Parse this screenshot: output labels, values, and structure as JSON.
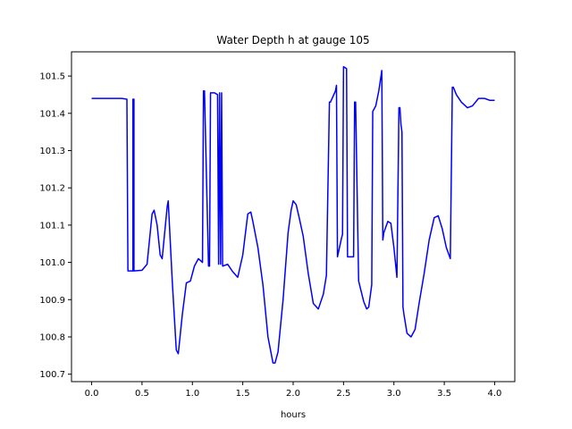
{
  "chart_data": {
    "type": "line",
    "title": "Water Depth h at gauge 105",
    "xlabel": "hours",
    "ylabel": "",
    "xlim": [
      -0.2,
      4.2
    ],
    "ylim": [
      100.68,
      101.565
    ],
    "xticks": [
      0.0,
      0.5,
      1.0,
      1.5,
      2.0,
      2.5,
      3.0,
      3.5,
      4.0
    ],
    "xtick_labels": [
      "0.0",
      "0.5",
      "1.0",
      "1.5",
      "2.0",
      "2.5",
      "3.0",
      "3.5",
      "4.0"
    ],
    "yticks": [
      100.7,
      100.8,
      100.9,
      101.0,
      101.1,
      101.2,
      101.3,
      101.4,
      101.5
    ],
    "ytick_labels": [
      "100.7",
      "100.8",
      "100.9",
      "101.0",
      "101.1",
      "101.2",
      "101.3",
      "101.4",
      "101.5"
    ],
    "grid": false,
    "series": [
      {
        "color": "#0000ff",
        "x": [
          0.0,
          0.3,
          0.35,
          0.36,
          0.41,
          0.41,
          0.42,
          0.42,
          0.5,
          0.55,
          0.6,
          0.62,
          0.65,
          0.68,
          0.7,
          0.75,
          0.76,
          0.8,
          0.84,
          0.86,
          0.9,
          0.94,
          0.98,
          1.02,
          1.06,
          1.1,
          1.11,
          1.12,
          1.16,
          1.17,
          1.18,
          1.22,
          1.25,
          1.26,
          1.27,
          1.28,
          1.29,
          1.3,
          1.35,
          1.4,
          1.45,
          1.5,
          1.55,
          1.58,
          1.6,
          1.65,
          1.7,
          1.75,
          1.8,
          1.82,
          1.85,
          1.9,
          1.95,
          1.98,
          2.0,
          2.03,
          2.06,
          2.1,
          2.15,
          2.2,
          2.25,
          2.3,
          2.33,
          2.36,
          2.37,
          2.42,
          2.43,
          2.44,
          2.48,
          2.49,
          2.5,
          2.53,
          2.54,
          2.6,
          2.61,
          2.62,
          2.65,
          2.7,
          2.73,
          2.75,
          2.78,
          2.79,
          2.82,
          2.85,
          2.88,
          2.89,
          2.9,
          2.94,
          2.97,
          3.0,
          3.03,
          3.05,
          3.06,
          3.07,
          3.08,
          3.09,
          3.1,
          3.13,
          3.17,
          3.21,
          3.25,
          3.3,
          3.35,
          3.4,
          3.44,
          3.48,
          3.52,
          3.56,
          3.58,
          3.59,
          3.62,
          3.67,
          3.73,
          3.78,
          3.84,
          3.9,
          3.95,
          4.0
        ],
        "y": [
          101.44,
          101.44,
          101.438,
          100.977,
          100.977,
          101.438,
          101.438,
          100.977,
          100.979,
          100.995,
          101.13,
          101.14,
          101.1,
          101.02,
          101.01,
          101.15,
          101.165,
          100.95,
          100.765,
          100.755,
          100.86,
          100.945,
          100.95,
          100.99,
          101.01,
          101.0,
          101.46,
          101.46,
          100.99,
          100.99,
          101.455,
          101.455,
          101.45,
          100.995,
          101.455,
          100.995,
          101.455,
          100.99,
          100.995,
          100.975,
          100.96,
          101.02,
          101.13,
          101.135,
          101.11,
          101.04,
          100.94,
          100.8,
          100.73,
          100.73,
          100.76,
          100.9,
          101.08,
          101.14,
          101.165,
          101.155,
          101.12,
          101.07,
          100.97,
          100.89,
          100.875,
          100.915,
          100.965,
          101.43,
          101.43,
          101.46,
          101.475,
          101.015,
          101.065,
          101.075,
          101.525,
          101.52,
          101.015,
          101.015,
          101.43,
          101.43,
          100.95,
          100.895,
          100.875,
          100.88,
          100.94,
          101.405,
          101.42,
          101.46,
          101.515,
          101.06,
          101.08,
          101.11,
          101.105,
          101.04,
          100.96,
          101.415,
          101.415,
          101.37,
          101.35,
          100.88,
          100.86,
          100.81,
          100.8,
          100.82,
          100.89,
          100.97,
          101.06,
          101.12,
          101.125,
          101.09,
          101.04,
          101.01,
          101.47,
          101.47,
          101.45,
          101.43,
          101.415,
          101.42,
          101.44,
          101.44,
          101.435,
          101.435
        ]
      }
    ]
  }
}
